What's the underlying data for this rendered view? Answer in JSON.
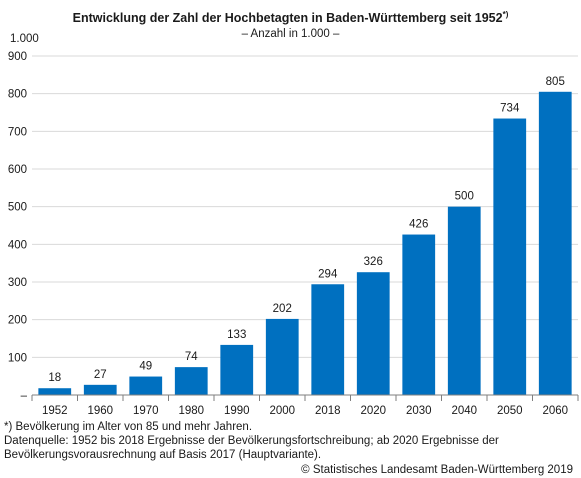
{
  "chart_data": {
    "type": "bar",
    "title": "Entwicklung der Zahl der Hochbetagten in Baden-Württemberg seit 1952",
    "title_note": "*)",
    "subtitle": "– Anzahl in 1.000 –",
    "ylabel": "1.000",
    "categories": [
      "1952",
      "1960",
      "1970",
      "1980",
      "1990",
      "2000",
      "2018",
      "2020",
      "2030",
      "2040",
      "2050",
      "2060"
    ],
    "values": [
      18,
      27,
      49,
      74,
      133,
      202,
      294,
      326,
      426,
      500,
      734,
      805
    ],
    "yticks": [
      0,
      100,
      200,
      300,
      400,
      500,
      600,
      700,
      800,
      900
    ],
    "ytick_labels": [
      "–",
      "100",
      "200",
      "300",
      "400",
      "500",
      "600",
      "700",
      "800",
      "900"
    ],
    "ylim": [
      0,
      900
    ],
    "grid": true,
    "bar_color": "#0070c0"
  },
  "footnotes": {
    "definition": "*) Bevölkerung im Alter von 85 und mehr Jahren.",
    "source_line1": "Datenquelle: 1952 bis 2018 Ergebnisse der Bevölkerungsfortschreibung; ab 2020 Ergebnisse der",
    "source_line2": "Bevölkerungsvorausrechnung auf Basis 2017 (Hauptvariante).",
    "copyright": "© Statistisches Landesamt Baden-Württemberg 2019"
  }
}
